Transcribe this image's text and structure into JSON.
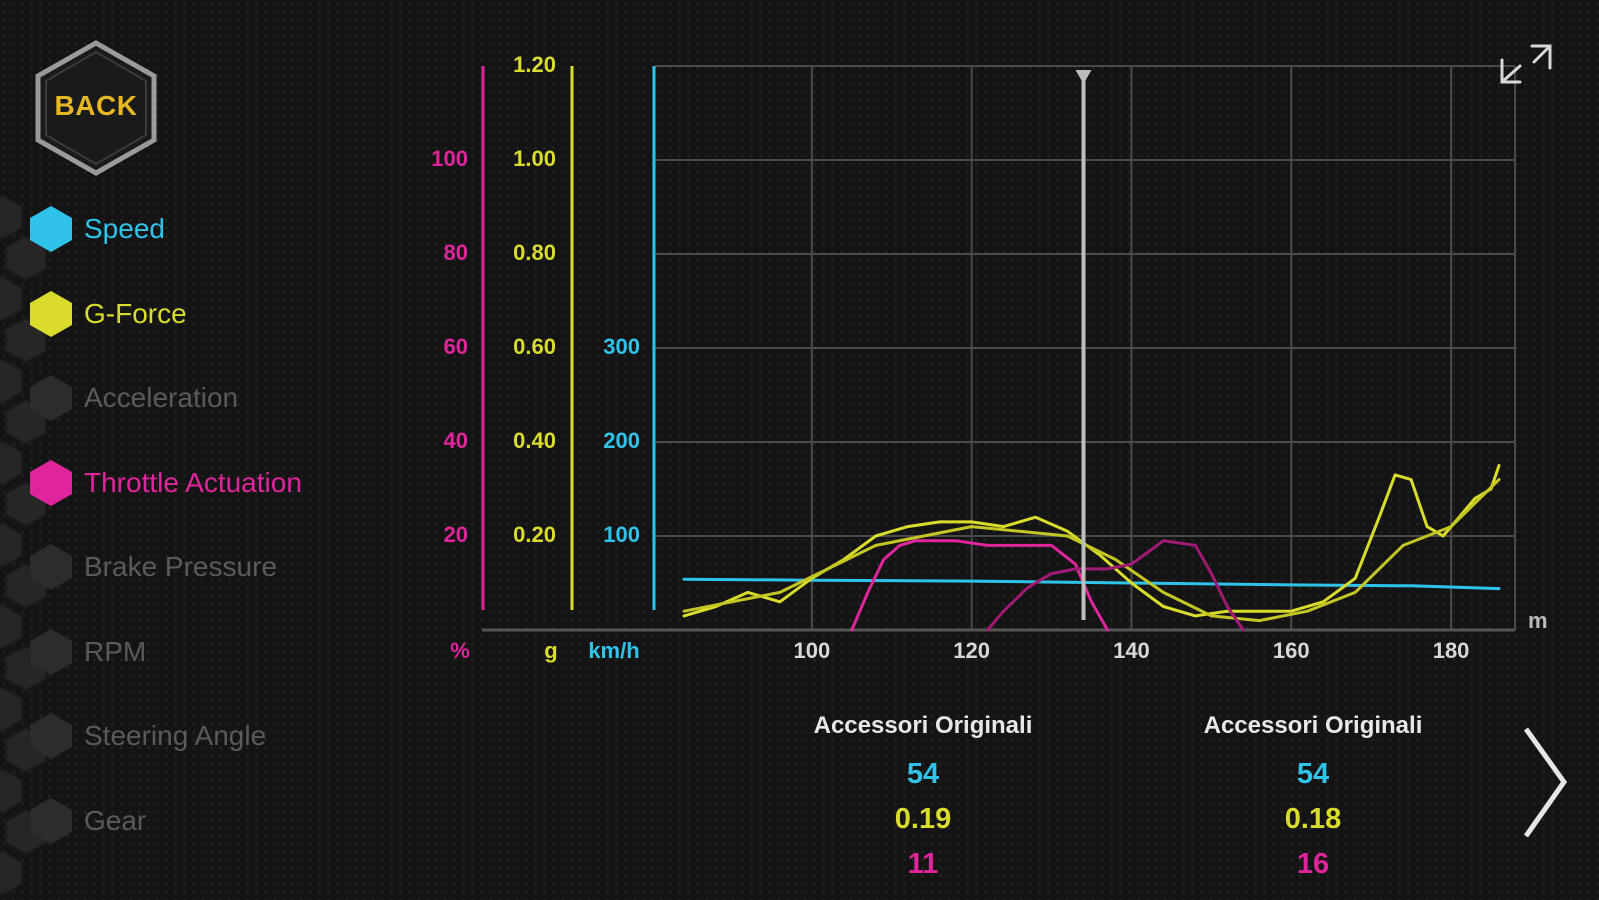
{
  "back_button": {
    "label": "BACK"
  },
  "channels": [
    {
      "label": "Speed",
      "active": true,
      "color": "#2fc3ea"
    },
    {
      "label": "G-Force",
      "active": true,
      "color": "#d9dc2a"
    },
    {
      "label": "Acceleration",
      "active": false,
      "color": "#5a5a5a"
    },
    {
      "label": "Throttle Actuation",
      "active": true,
      "color": "#e0259c"
    },
    {
      "label": "Brake Pressure",
      "active": false,
      "color": "#5a5a5a"
    },
    {
      "label": "RPM",
      "active": false,
      "color": "#5a5a5a"
    },
    {
      "label": "Steering Angle",
      "active": false,
      "color": "#5a5a5a"
    },
    {
      "label": "Gear",
      "active": false,
      "color": "#5a5a5a"
    }
  ],
  "chart_data": {
    "type": "line",
    "xlabel": "m",
    "xlim": [
      82,
      188
    ],
    "x_ticks": [
      "100",
      "120",
      "140",
      "160",
      "180"
    ],
    "cursor_x": 134,
    "axes": {
      "throttle": {
        "unit": "%",
        "ticks": [
          "20",
          "40",
          "60",
          "80",
          "100"
        ],
        "range": [
          0,
          120
        ],
        "color": "#e0259c"
      },
      "gforce": {
        "unit": "g",
        "ticks": [
          "0.20",
          "0.40",
          "0.60",
          "0.80",
          "1.00",
          "1.20"
        ],
        "range": [
          0,
          1.2
        ],
        "color": "#d9dc2a"
      },
      "speed": {
        "unit": "km/h",
        "ticks": [
          "100",
          "200",
          "300"
        ],
        "range": [
          0,
          600
        ],
        "color": "#2fc3ea"
      }
    },
    "series": [
      {
        "axis": "speed",
        "color": "#2fc3ea",
        "x": [
          84,
          100,
          120,
          140,
          160,
          175,
          186
        ],
        "y": [
          54,
          53,
          52,
          50,
          48,
          47,
          44
        ]
      },
      {
        "axis": "gforce",
        "color": "#d9dc2a",
        "x": [
          84,
          88,
          92,
          96,
          100,
          104,
          108,
          112,
          116,
          120,
          124,
          128,
          132,
          136,
          140,
          144,
          148,
          152,
          156,
          160,
          164,
          168,
          171,
          173,
          175,
          177,
          179,
          181,
          183,
          185,
          186
        ],
        "y": [
          0.03,
          0.05,
          0.08,
          0.06,
          0.11,
          0.15,
          0.2,
          0.22,
          0.23,
          0.23,
          0.22,
          0.24,
          0.21,
          0.16,
          0.1,
          0.05,
          0.03,
          0.04,
          0.04,
          0.04,
          0.06,
          0.11,
          0.24,
          0.33,
          0.32,
          0.22,
          0.2,
          0.24,
          0.28,
          0.3,
          0.35
        ]
      },
      {
        "axis": "gforce",
        "color": "#c3c623",
        "x": [
          84,
          90,
          96,
          102,
          108,
          114,
          120,
          126,
          132,
          138,
          144,
          150,
          156,
          162,
          168,
          174,
          180,
          186
        ],
        "y": [
          0.04,
          0.06,
          0.08,
          0.13,
          0.18,
          0.2,
          0.22,
          0.21,
          0.2,
          0.15,
          0.08,
          0.03,
          0.02,
          0.04,
          0.08,
          0.18,
          0.22,
          0.32
        ]
      },
      {
        "axis": "throttle",
        "color": "#e0259c",
        "x": [
          105,
          107,
          109,
          111,
          113,
          118,
          122,
          126,
          130,
          133,
          135,
          137
        ],
        "y": [
          0,
          8,
          15,
          18,
          19,
          19,
          18,
          18,
          18,
          14,
          6,
          0
        ]
      },
      {
        "axis": "throttle",
        "color": "#a11a74",
        "x": [
          122,
          124,
          127,
          130,
          133,
          137,
          140,
          144,
          148,
          150,
          152,
          154
        ],
        "y": [
          0,
          4,
          9,
          12,
          13,
          13,
          14,
          19,
          18,
          12,
          5,
          0
        ]
      }
    ]
  },
  "comparison": [
    {
      "label": "Accessori Originali",
      "speed": "54",
      "gforce": "0.19",
      "throttle": "11"
    },
    {
      "label": "Accessori Originali",
      "speed": "54",
      "gforce": "0.18",
      "throttle": "16"
    }
  ]
}
